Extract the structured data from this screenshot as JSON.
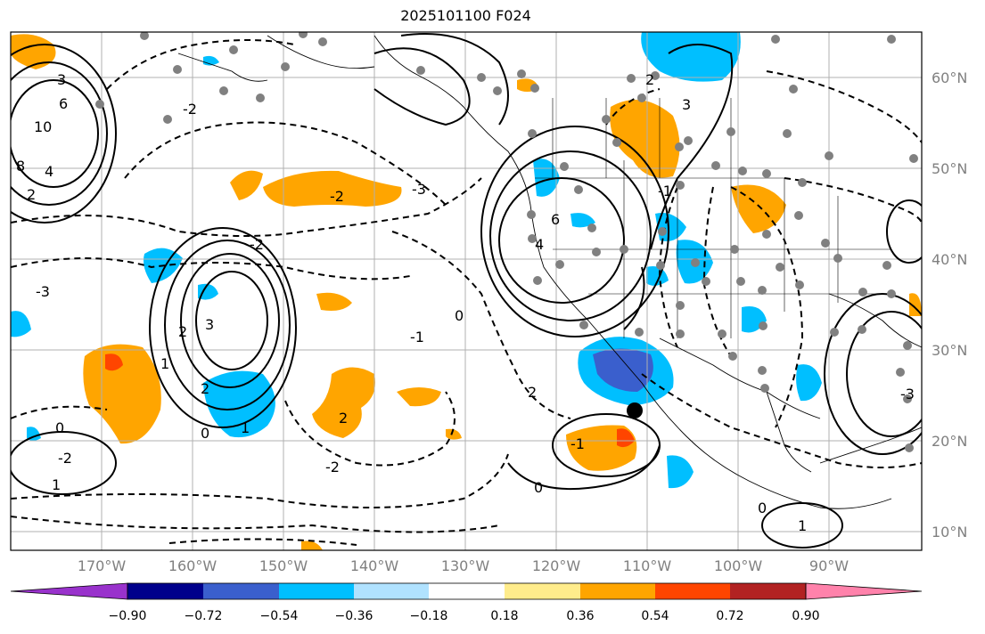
{
  "title": "2025101100 F024",
  "lat_labels": [
    "60°N",
    "50°N",
    "40°N",
    "30°N",
    "20°N",
    "10°N"
  ],
  "lon_labels": [
    "170°W",
    "160°W",
    "150°W",
    "140°W",
    "130°W",
    "120°W",
    "110°W",
    "100°W",
    "90°W"
  ],
  "colorbar": {
    "ticks": [
      "−0.90",
      "−0.72",
      "−0.54",
      "−0.36",
      "−0.18",
      "0.18",
      "0.36",
      "0.54",
      "0.72",
      "0.90"
    ],
    "colors": [
      "#9932cc",
      "#00008b",
      "#3a5fcd",
      "#00bfff",
      "#b0e2ff",
      "#ffffff",
      "#ffec8b",
      "#ffa500",
      "#ff4500",
      "#b22222",
      "#ff82ab"
    ]
  },
  "contour_labels": [
    "3",
    "6",
    "10",
    "8",
    "4",
    "2",
    "-2",
    "-3",
    "-2",
    "2",
    "3",
    "1",
    "2",
    "0",
    "-1",
    "2",
    "-2",
    "1",
    "0",
    "-2",
    "1",
    "0",
    "2",
    "4",
    "-1",
    "-3",
    "6",
    "3",
    "2",
    "-2",
    "1",
    "0",
    "-1",
    "0",
    "-3"
  ],
  "colors": {
    "cool": "#00bfff",
    "warm": "#ffa500",
    "strong_warm": "#ff4500",
    "strong_cool": "#3a5fcd",
    "grid": "#b0b0b0",
    "station": "#808080"
  }
}
